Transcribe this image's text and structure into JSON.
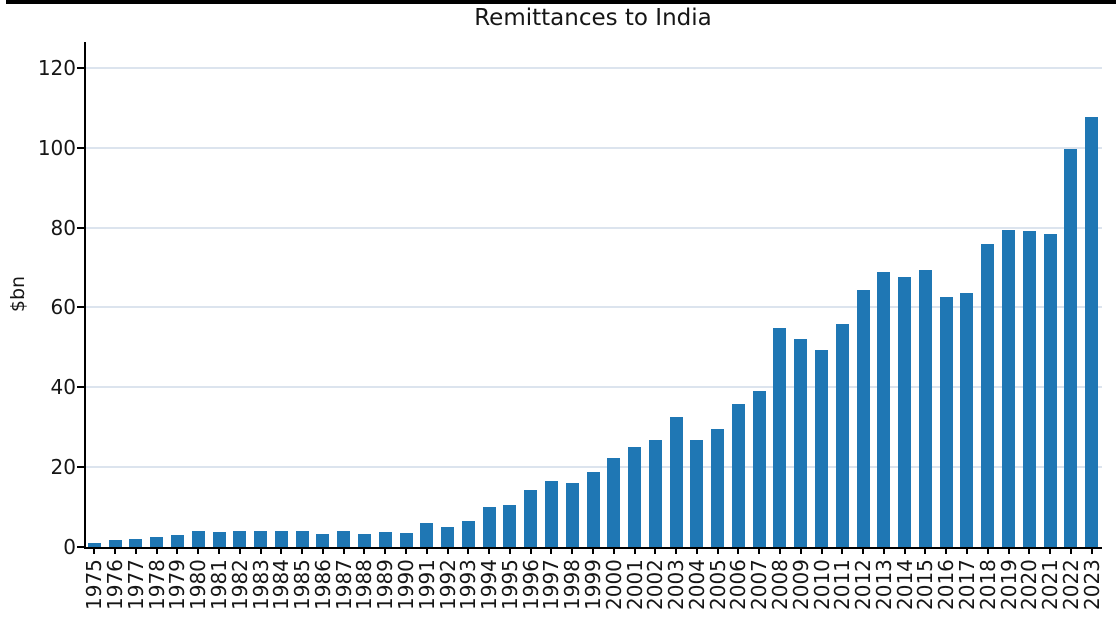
{
  "figure": {
    "background_color": "#ffffff",
    "top_strip_color": "#000000"
  },
  "chart_data": {
    "type": "bar",
    "title": "Remittances to India",
    "xlabel": "",
    "ylabel": "$bn",
    "legend": "none",
    "grid": "horizontal",
    "grid_color": "#dce4ee",
    "bar_color": "#1f77b4",
    "axis_color": "#000000",
    "text_color": "#161616",
    "ylim": [
      0,
      126.5
    ],
    "yticks": [
      0,
      20,
      40,
      60,
      80,
      100,
      120
    ],
    "categories": [
      "1975",
      "1976",
      "1977",
      "1978",
      "1979",
      "1980",
      "1981",
      "1982",
      "1983",
      "1984",
      "1985",
      "1986",
      "1987",
      "1988",
      "1989",
      "1990",
      "1991",
      "1992",
      "1993",
      "1994",
      "1995",
      "1996",
      "1997",
      "1998",
      "1999",
      "2000",
      "2001",
      "2002",
      "2003",
      "2004",
      "2005",
      "2006",
      "2007",
      "2008",
      "2009",
      "2010",
      "2011",
      "2012",
      "2013",
      "2014",
      "2015",
      "2016",
      "2017",
      "2018",
      "2019",
      "2020",
      "2021",
      "2022",
      "2023"
    ],
    "values": [
      1.1,
      1.8,
      2.1,
      2.6,
      3.0,
      4.1,
      3.7,
      4.0,
      4.0,
      4.1,
      4.0,
      3.3,
      3.9,
      3.3,
      3.7,
      3.4,
      5.9,
      4.9,
      6.6,
      10.0,
      10.5,
      14.4,
      16.6,
      16.0,
      18.9,
      22.3,
      25.0,
      26.8,
      32.6,
      26.9,
      29.6,
      35.8,
      39.1,
      54.9,
      52.2,
      49.4,
      55.9,
      64.5,
      68.8,
      67.7,
      69.4,
      62.6,
      63.7,
      75.9,
      79.4,
      79.1,
      78.5,
      99.8,
      107.8
    ]
  }
}
